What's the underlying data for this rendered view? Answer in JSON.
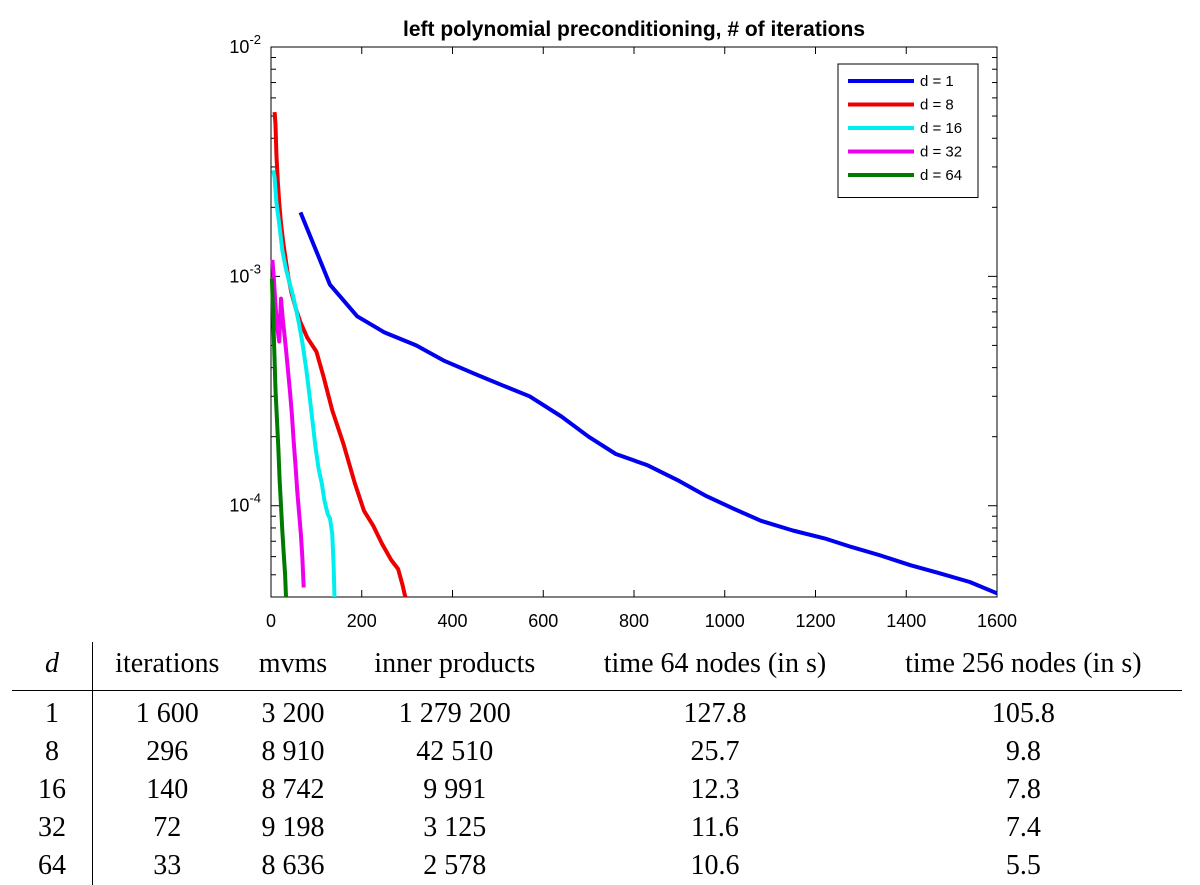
{
  "chart_data": {
    "type": "line",
    "title": "left polynomial preconditioning, # of iterations",
    "xlabel": "",
    "ylabel": "",
    "xlim": [
      0,
      1600
    ],
    "ylim": [
      4e-05,
      0.01
    ],
    "yscale": "log",
    "x_ticks": [
      0,
      200,
      400,
      600,
      800,
      1000,
      1200,
      1400,
      1600
    ],
    "y_ticks": [
      {
        "value": 0.01,
        "base": "10",
        "exp": "-2"
      },
      {
        "value": 0.001,
        "base": "10",
        "exp": "-3"
      },
      {
        "value": 0.0001,
        "base": "10",
        "exp": "-4"
      }
    ],
    "legend_position": "top-right",
    "series": [
      {
        "name": "d = 1",
        "color": "#0000ee",
        "x": [
          65,
          130,
          190,
          250,
          320,
          380,
          450,
          510,
          570,
          640,
          700,
          760,
          830,
          900,
          960,
          1020,
          1080,
          1150,
          1220,
          1280,
          1340,
          1410,
          1470,
          1540,
          1600
        ],
        "y": [
          0.0019,
          0.00092,
          0.00067,
          0.00057,
          0.0005,
          0.00043,
          0.000375,
          0.000335,
          0.0003,
          0.000245,
          0.0002,
          0.000168,
          0.00015,
          0.000128,
          0.00011,
          9.7e-05,
          8.6e-05,
          7.8e-05,
          7.2e-05,
          6.6e-05,
          6.1e-05,
          5.5e-05,
          5.1e-05,
          4.65e-05,
          4.15e-05
        ]
      },
      {
        "name": "d = 8",
        "color": "#ee0000",
        "x": [
          8,
          10,
          12,
          15,
          18,
          22,
          27,
          32,
          38,
          45,
          55,
          65,
          80,
          100,
          115,
          135,
          160,
          185,
          205,
          225,
          245,
          265,
          280,
          290,
          296
        ],
        "y": [
          0.0052,
          0.0046,
          0.0034,
          0.0026,
          0.0021,
          0.0017,
          0.0014,
          0.0012,
          0.001,
          0.00085,
          0.00072,
          0.00063,
          0.00054,
          0.00047,
          0.00037,
          0.00026,
          0.000185,
          0.000125,
          9.5e-05,
          8.2e-05,
          6.8e-05,
          5.8e-05,
          5.3e-05,
          4.5e-05,
          4e-05
        ]
      },
      {
        "name": "d = 16",
        "color": "#00eeee",
        "x": [
          5,
          8,
          12,
          18,
          25,
          32,
          40,
          48,
          55,
          62,
          70,
          78,
          85,
          92,
          98,
          105,
          112,
          118,
          125,
          130,
          135,
          138,
          140
        ],
        "y": [
          0.0029,
          0.0027,
          0.0021,
          0.0017,
          0.0013,
          0.0011,
          0.00095,
          0.00083,
          0.00072,
          0.00062,
          0.0005,
          0.00039,
          0.0003,
          0.00023,
          0.00018,
          0.000145,
          0.000125,
          0.000105,
          9.2e-05,
          8.8e-05,
          7.5e-05,
          5.5e-05,
          4e-05
        ]
      },
      {
        "name": "d = 32",
        "color": "#ee00ee",
        "x": [
          3,
          6,
          10,
          14,
          18,
          22,
          26,
          30,
          34,
          38,
          42,
          46,
          50,
          54,
          58,
          62,
          66,
          69,
          72
        ],
        "y": [
          0.00118,
          0.001,
          0.00075,
          0.00059,
          0.00052,
          0.0008,
          0.00065,
          0.00055,
          0.00046,
          0.00038,
          0.00031,
          0.00025,
          0.00019,
          0.00015,
          0.000115,
          9.3e-05,
          7.5e-05,
          6e-05,
          4.4e-05
        ]
      },
      {
        "name": "d = 64",
        "color": "#007a00",
        "x": [
          2,
          4,
          6,
          8,
          10,
          13,
          16,
          19,
          22,
          25,
          28,
          31,
          33
        ],
        "y": [
          0.00098,
          0.00075,
          0.00057,
          0.00043,
          0.00032,
          0.00024,
          0.00018,
          0.00013,
          0.0001,
          7.8e-05,
          6.2e-05,
          5e-05,
          4e-05
        ]
      }
    ]
  },
  "table": {
    "headers": [
      "d",
      "iterations",
      "mvms",
      "inner products",
      "time 64 nodes (in s)",
      "time 256 nodes (in s)"
    ],
    "rows": [
      [
        "1",
        "1 600",
        "3 200",
        "1 279 200",
        "127.8",
        "105.8"
      ],
      [
        "8",
        "296",
        "8 910",
        "42 510",
        "25.7",
        "9.8"
      ],
      [
        "16",
        "140",
        "8 742",
        "9 991",
        "12.3",
        "7.8"
      ],
      [
        "32",
        "72",
        "9 198",
        "3 125",
        "11.6",
        "7.4"
      ],
      [
        "64",
        "33",
        "8 636",
        "2 578",
        "10.6",
        "5.5"
      ]
    ]
  }
}
